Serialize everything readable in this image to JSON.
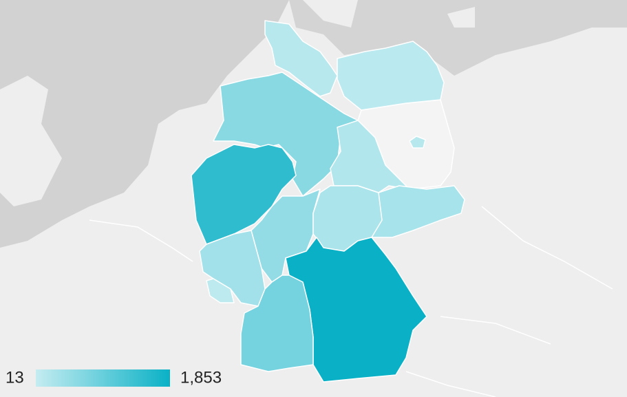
{
  "map": {
    "scale": {
      "min": 13,
      "max": {
        "value": 1853,
        "label": "1,853"
      }
    },
    "regions": [
      {
        "value": 150
      },
      {
        "value": 110
      },
      {
        "value": 600
      },
      {
        "value": 200
      },
      {
        "value": 1500
      },
      {
        "value": 500
      },
      {
        "value": 250
      },
      {
        "value": 300
      },
      {
        "value": 350
      },
      {
        "value": 80
      },
      {
        "value": 1853
      },
      {
        "value": 800
      },
      {
        "value": 150
      }
    ]
  }
}
